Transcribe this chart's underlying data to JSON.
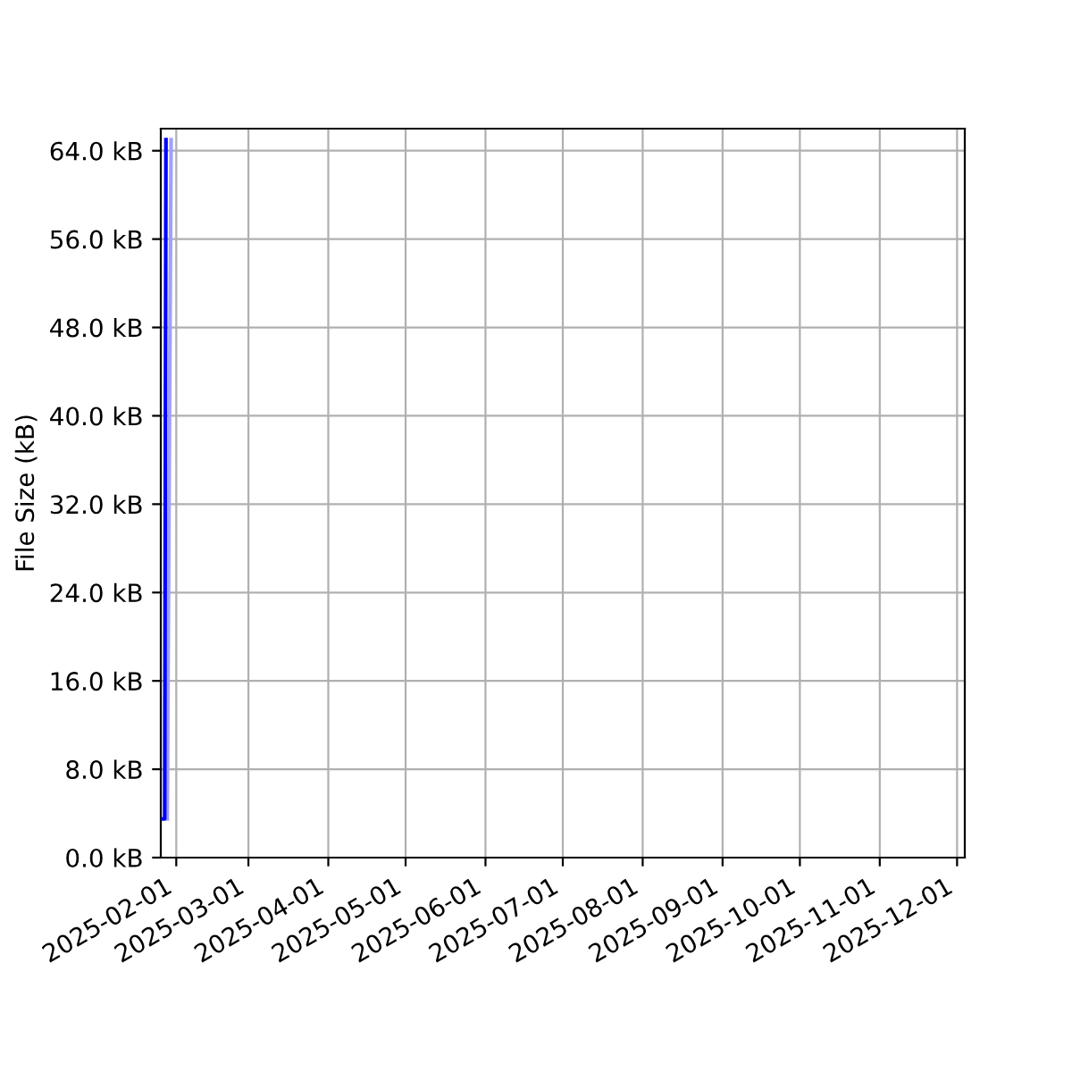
{
  "chart_data": {
    "type": "line",
    "ylabel": "File Size (kB)",
    "series": [
      {
        "color": "#0000ff",
        "x": [
          "2025-01-26T12:00",
          "2025-01-27T12:00",
          "2025-01-28"
        ],
        "values": [
          3.5,
          3.5,
          65
        ]
      },
      {
        "color": "#a0a0ff",
        "x": [
          "2025-01-28T12:00",
          "2025-01-30"
        ],
        "values": [
          3.5,
          65
        ]
      }
    ],
    "xlim": [
      "2025-01-26",
      "2025-12-04"
    ],
    "xticks": [
      "2025-02-01",
      "2025-03-01",
      "2025-04-01",
      "2025-05-01",
      "2025-06-01",
      "2025-07-01",
      "2025-08-01",
      "2025-09-01",
      "2025-10-01",
      "2025-11-01",
      "2025-12-01"
    ],
    "ylim": [
      0,
      66
    ],
    "yticks": [
      {
        "value": 0,
        "label": "0.0 kB"
      },
      {
        "value": 8,
        "label": "8.0 kB"
      },
      {
        "value": 16,
        "label": "16.0 kB"
      },
      {
        "value": 24,
        "label": "24.0 kB"
      },
      {
        "value": 32,
        "label": "32.0 kB"
      },
      {
        "value": 40,
        "label": "40.0 kB"
      },
      {
        "value": 48,
        "label": "48.0 kB"
      },
      {
        "value": 56,
        "label": "56.0 kB"
      },
      {
        "value": 64,
        "label": "64.0 kB"
      }
    ],
    "grid": true
  }
}
